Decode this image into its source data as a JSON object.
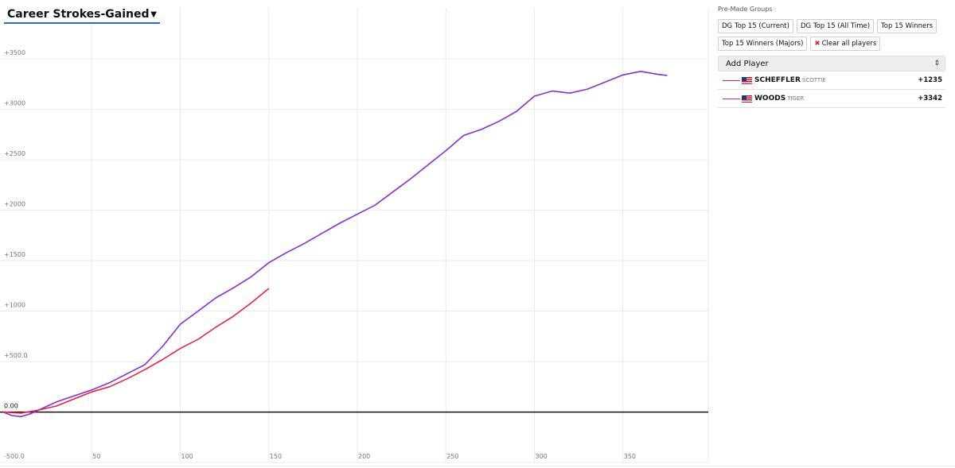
{
  "metric_selector": {
    "label": "Career Strokes-Gained",
    "icon": "caret-down-icon"
  },
  "panel": {
    "groups_title": "Pre-Made Groups",
    "groups": [
      "DG Top 15 (Current)",
      "DG Top 15 (All Time)",
      "Top 15 Winners",
      "Top 15 Winners (Majors)"
    ],
    "clear_label": "Clear all players",
    "clear_icon": "✖",
    "add_player_label": "Add Player",
    "players": [
      {
        "last": "SCHEFFLER",
        "first": "SCOTTIE",
        "value": "+1235",
        "color": "#e0254b"
      },
      {
        "last": "WOODS",
        "first": "TIGER",
        "value": "+3342",
        "color": "#8b2fc9"
      }
    ]
  },
  "chart_data": {
    "type": "line",
    "title": "",
    "xlabel": "",
    "ylabel": "",
    "xlim": [
      0,
      400
    ],
    "ylim": [
      -500,
      3500
    ],
    "y_ticks": [
      {
        "value": 3500,
        "label": "+3500"
      },
      {
        "value": 3000,
        "label": "+3000"
      },
      {
        "value": 2500,
        "label": "+2500"
      },
      {
        "value": 2000,
        "label": "+2000"
      },
      {
        "value": 1500,
        "label": "+1500"
      },
      {
        "value": 1000,
        "label": "+1000"
      },
      {
        "value": 500,
        "label": "+500.0"
      },
      {
        "value": 0,
        "label": "0.00"
      },
      {
        "value": -500,
        "label": "-500.0"
      }
    ],
    "x_ticks": [
      {
        "value": 50,
        "label": "50"
      },
      {
        "value": 100,
        "label": "100"
      },
      {
        "value": 150,
        "label": "150"
      },
      {
        "value": 200,
        "label": "200"
      },
      {
        "value": 250,
        "label": "250"
      },
      {
        "value": 300,
        "label": "300"
      },
      {
        "value": 350,
        "label": "350"
      }
    ],
    "grid": true,
    "series": [
      {
        "name": "WOODS",
        "color": "#8b2fc9",
        "points": [
          [
            0,
            0
          ],
          [
            5,
            -35
          ],
          [
            10,
            -45
          ],
          [
            15,
            -20
          ],
          [
            20,
            20
          ],
          [
            25,
            60
          ],
          [
            30,
            100
          ],
          [
            40,
            160
          ],
          [
            50,
            220
          ],
          [
            60,
            290
          ],
          [
            70,
            380
          ],
          [
            80,
            470
          ],
          [
            90,
            650
          ],
          [
            100,
            870
          ],
          [
            110,
            1000
          ],
          [
            120,
            1130
          ],
          [
            130,
            1230
          ],
          [
            140,
            1340
          ],
          [
            150,
            1480
          ],
          [
            160,
            1580
          ],
          [
            170,
            1670
          ],
          [
            180,
            1770
          ],
          [
            190,
            1870
          ],
          [
            200,
            1960
          ],
          [
            210,
            2050
          ],
          [
            220,
            2180
          ],
          [
            230,
            2310
          ],
          [
            240,
            2450
          ],
          [
            250,
            2590
          ],
          [
            260,
            2740
          ],
          [
            270,
            2800
          ],
          [
            280,
            2880
          ],
          [
            290,
            2980
          ],
          [
            300,
            3130
          ],
          [
            310,
            3180
          ],
          [
            320,
            3160
          ],
          [
            330,
            3200
          ],
          [
            340,
            3270
          ],
          [
            350,
            3340
          ],
          [
            360,
            3375
          ],
          [
            370,
            3345
          ],
          [
            375,
            3335
          ]
        ]
      },
      {
        "name": "SCHEFFLER",
        "color": "#e0254b",
        "points": [
          [
            0,
            0
          ],
          [
            10,
            -10
          ],
          [
            20,
            20
          ],
          [
            30,
            60
          ],
          [
            40,
            130
          ],
          [
            50,
            200
          ],
          [
            60,
            250
          ],
          [
            70,
            330
          ],
          [
            80,
            420
          ],
          [
            90,
            520
          ],
          [
            100,
            630
          ],
          [
            110,
            720
          ],
          [
            120,
            840
          ],
          [
            130,
            950
          ],
          [
            140,
            1080
          ],
          [
            150,
            1225
          ]
        ]
      }
    ]
  }
}
